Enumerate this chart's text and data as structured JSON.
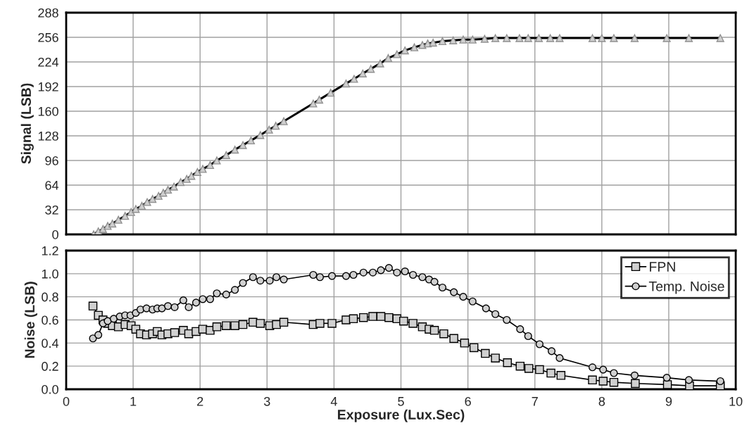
{
  "chart_data": [
    {
      "type": "line",
      "ylabel": "Signal (LSB)",
      "xlim": [
        0,
        10
      ],
      "xticks": [
        0,
        1,
        2,
        3,
        4,
        5,
        6,
        7,
        8,
        9,
        10
      ],
      "ylim": [
        0,
        288
      ],
      "yticks": [
        0,
        32,
        64,
        96,
        128,
        160,
        192,
        224,
        256,
        288
      ],
      "grid": true,
      "tick_labels": "y",
      "marker": "triangle",
      "series": [
        {
          "color": "#000000",
          "x": [
            0.41,
            0.48,
            0.55,
            0.62,
            0.69,
            0.78,
            0.88,
            0.97,
            1.04,
            1.13,
            1.21,
            1.29,
            1.38,
            1.45,
            1.52,
            1.61,
            1.71,
            1.8,
            1.87,
            1.96,
            2.04,
            2.15,
            2.25,
            2.39,
            2.52,
            2.64,
            2.76,
            2.9,
            3.03,
            3.13,
            3.25,
            3.69,
            3.78,
            3.95,
            4.18,
            4.3,
            4.43,
            4.55,
            4.69,
            4.81,
            4.94,
            5.06,
            5.2,
            5.32,
            5.4,
            5.48,
            5.62,
            5.78,
            5.93,
            6.07,
            6.25,
            6.41,
            6.58,
            6.77,
            6.9,
            7.06,
            7.23,
            7.37,
            7.86,
            8.0,
            8.18,
            8.49,
            8.97,
            9.3,
            9.77
          ],
          "values": [
            0,
            4,
            7,
            11,
            14,
            19,
            24,
            29,
            33,
            37,
            42,
            46,
            50,
            54,
            58,
            62,
            68,
            72,
            76,
            81,
            85,
            90,
            96,
            103,
            110,
            116,
            122,
            129,
            136,
            141,
            147,
            170,
            175,
            184,
            196,
            202,
            209,
            215,
            222,
            229,
            234,
            239,
            243,
            246,
            248,
            249,
            251,
            252,
            253,
            253,
            254,
            255,
            255,
            255,
            255,
            255,
            255,
            255,
            255,
            255,
            255,
            255,
            255,
            255,
            255
          ]
        }
      ]
    },
    {
      "type": "line",
      "xlabel": "Exposure (Lux.Sec)",
      "ylabel": "Noise (LSB)",
      "xlim": [
        0,
        10
      ],
      "xticks": [
        0,
        1,
        2,
        3,
        4,
        5,
        6,
        7,
        8,
        9,
        10
      ],
      "ylim": [
        0,
        1.2
      ],
      "yticks": [
        {
          "value": 0,
          "label": "0.0"
        },
        0.2,
        0.4,
        0.6,
        0.8,
        {
          "value": 1,
          "label": "1.0"
        },
        1.2
      ],
      "grid": true,
      "legend": "top right",
      "series": [
        {
          "name": "FPN",
          "color": "#000000",
          "marker": "square",
          "x": [
            0.4,
            0.48,
            0.55,
            0.62,
            0.69,
            0.78,
            0.88,
            0.97,
            1.04,
            1.11,
            1.2,
            1.29,
            1.36,
            1.43,
            1.52,
            1.62,
            1.75,
            1.83,
            1.94,
            2.04,
            2.15,
            2.25,
            2.39,
            2.52,
            2.64,
            2.79,
            2.9,
            3.04,
            3.14,
            3.25,
            3.69,
            3.79,
            3.97,
            4.18,
            4.29,
            4.44,
            4.58,
            4.7,
            4.82,
            4.94,
            5.04,
            5.18,
            5.32,
            5.42,
            5.5,
            5.64,
            5.79,
            5.95,
            6.09,
            6.26,
            6.41,
            6.59,
            6.78,
            6.91,
            7.07,
            7.24,
            7.39,
            7.86,
            8.02,
            8.18,
            8.5,
            8.98,
            9.31,
            9.77
          ],
          "values": [
            0.72,
            0.64,
            0.6,
            0.57,
            0.55,
            0.54,
            0.56,
            0.55,
            0.52,
            0.48,
            0.47,
            0.48,
            0.5,
            0.47,
            0.48,
            0.49,
            0.51,
            0.48,
            0.5,
            0.52,
            0.51,
            0.54,
            0.55,
            0.55,
            0.56,
            0.58,
            0.57,
            0.55,
            0.56,
            0.58,
            0.56,
            0.57,
            0.57,
            0.6,
            0.61,
            0.62,
            0.63,
            0.63,
            0.62,
            0.61,
            0.59,
            0.57,
            0.54,
            0.52,
            0.51,
            0.48,
            0.44,
            0.4,
            0.36,
            0.31,
            0.27,
            0.23,
            0.2,
            0.18,
            0.17,
            0.14,
            0.12,
            0.08,
            0.07,
            0.06,
            0.05,
            0.04,
            0.03,
            0.03
          ]
        },
        {
          "name": "Temp. Noise",
          "color": "#000000",
          "marker": "circle",
          "x": [
            0.4,
            0.48,
            0.55,
            0.62,
            0.71,
            0.8,
            0.88,
            0.96,
            1.04,
            1.11,
            1.2,
            1.29,
            1.36,
            1.43,
            1.52,
            1.62,
            1.75,
            1.83,
            1.94,
            2.04,
            2.15,
            2.25,
            2.39,
            2.52,
            2.64,
            2.79,
            2.9,
            3.04,
            3.14,
            3.25,
            3.69,
            3.79,
            3.97,
            4.18,
            4.29,
            4.44,
            4.58,
            4.7,
            4.82,
            4.94,
            5.06,
            5.18,
            5.32,
            5.42,
            5.5,
            5.62,
            5.79,
            5.93,
            6.07,
            6.27,
            6.41,
            6.58,
            6.78,
            6.9,
            7.07,
            7.25,
            7.37,
            7.86,
            8.02,
            8.18,
            8.49,
            8.97,
            9.3,
            9.77
          ],
          "values": [
            0.44,
            0.47,
            0.57,
            0.59,
            0.61,
            0.63,
            0.64,
            0.64,
            0.66,
            0.69,
            0.7,
            0.69,
            0.7,
            0.7,
            0.72,
            0.71,
            0.77,
            0.71,
            0.75,
            0.78,
            0.78,
            0.83,
            0.82,
            0.86,
            0.92,
            0.97,
            0.94,
            0.94,
            0.97,
            0.95,
            0.99,
            0.97,
            0.98,
            0.98,
            0.99,
            1.01,
            1.01,
            1.03,
            1.05,
            1.01,
            1.02,
            0.99,
            0.97,
            0.95,
            0.93,
            0.88,
            0.84,
            0.8,
            0.76,
            0.7,
            0.65,
            0.6,
            0.52,
            0.46,
            0.39,
            0.33,
            0.27,
            0.19,
            0.17,
            0.14,
            0.12,
            0.1,
            0.08,
            0.07
          ]
        }
      ]
    }
  ]
}
